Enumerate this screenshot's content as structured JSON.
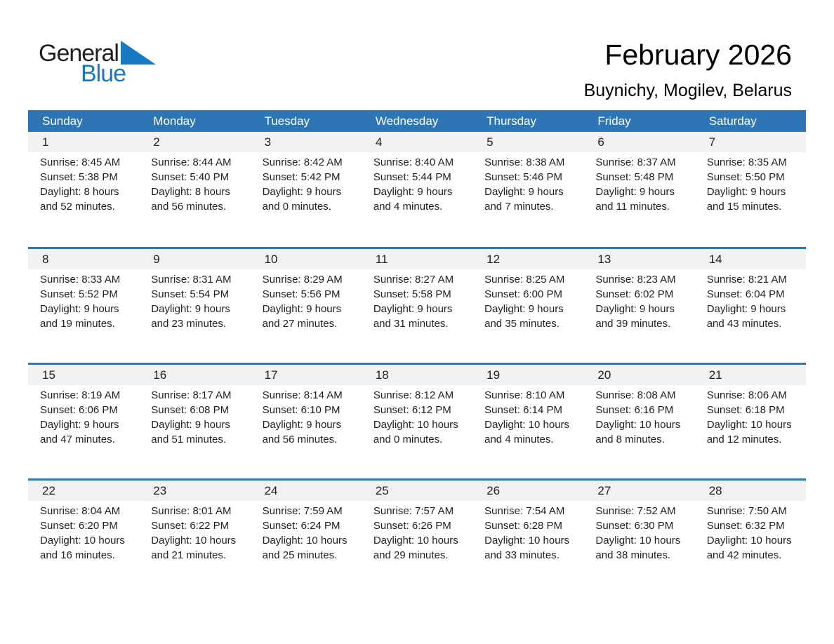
{
  "logo": {
    "general": "General",
    "blue": "Blue"
  },
  "header": {
    "month_title": "February 2026",
    "location": "Buynichy, Mogilev, Belarus"
  },
  "colors": {
    "header_blue": "#2E75B6",
    "week_line_blue": "#2E75B6",
    "day_band_gray": "#F1F1F1",
    "logo_blue": "#1779C1",
    "logo_dark": "#231F20",
    "text": "#1F1F1F"
  },
  "calendar": {
    "weekdays": [
      "Sunday",
      "Monday",
      "Tuesday",
      "Wednesday",
      "Thursday",
      "Friday",
      "Saturday"
    ],
    "weeks": [
      [
        {
          "day": "1",
          "sunrise": "Sunrise: 8:45 AM",
          "sunset": "Sunset: 5:38 PM",
          "daylight": "Daylight: 8 hours and 52 minutes."
        },
        {
          "day": "2",
          "sunrise": "Sunrise: 8:44 AM",
          "sunset": "Sunset: 5:40 PM",
          "daylight": "Daylight: 8 hours and 56 minutes."
        },
        {
          "day": "3",
          "sunrise": "Sunrise: 8:42 AM",
          "sunset": "Sunset: 5:42 PM",
          "daylight": "Daylight: 9 hours and 0 minutes."
        },
        {
          "day": "4",
          "sunrise": "Sunrise: 8:40 AM",
          "sunset": "Sunset: 5:44 PM",
          "daylight": "Daylight: 9 hours and 4 minutes."
        },
        {
          "day": "5",
          "sunrise": "Sunrise: 8:38 AM",
          "sunset": "Sunset: 5:46 PM",
          "daylight": "Daylight: 9 hours and 7 minutes."
        },
        {
          "day": "6",
          "sunrise": "Sunrise: 8:37 AM",
          "sunset": "Sunset: 5:48 PM",
          "daylight": "Daylight: 9 hours and 11 minutes."
        },
        {
          "day": "7",
          "sunrise": "Sunrise: 8:35 AM",
          "sunset": "Sunset: 5:50 PM",
          "daylight": "Daylight: 9 hours and 15 minutes."
        }
      ],
      [
        {
          "day": "8",
          "sunrise": "Sunrise: 8:33 AM",
          "sunset": "Sunset: 5:52 PM",
          "daylight": "Daylight: 9 hours and 19 minutes."
        },
        {
          "day": "9",
          "sunrise": "Sunrise: 8:31 AM",
          "sunset": "Sunset: 5:54 PM",
          "daylight": "Daylight: 9 hours and 23 minutes."
        },
        {
          "day": "10",
          "sunrise": "Sunrise: 8:29 AM",
          "sunset": "Sunset: 5:56 PM",
          "daylight": "Daylight: 9 hours and 27 minutes."
        },
        {
          "day": "11",
          "sunrise": "Sunrise: 8:27 AM",
          "sunset": "Sunset: 5:58 PM",
          "daylight": "Daylight: 9 hours and 31 minutes."
        },
        {
          "day": "12",
          "sunrise": "Sunrise: 8:25 AM",
          "sunset": "Sunset: 6:00 PM",
          "daylight": "Daylight: 9 hours and 35 minutes."
        },
        {
          "day": "13",
          "sunrise": "Sunrise: 8:23 AM",
          "sunset": "Sunset: 6:02 PM",
          "daylight": "Daylight: 9 hours and 39 minutes."
        },
        {
          "day": "14",
          "sunrise": "Sunrise: 8:21 AM",
          "sunset": "Sunset: 6:04 PM",
          "daylight": "Daylight: 9 hours and 43 minutes."
        }
      ],
      [
        {
          "day": "15",
          "sunrise": "Sunrise: 8:19 AM",
          "sunset": "Sunset: 6:06 PM",
          "daylight": "Daylight: 9 hours and 47 minutes."
        },
        {
          "day": "16",
          "sunrise": "Sunrise: 8:17 AM",
          "sunset": "Sunset: 6:08 PM",
          "daylight": "Daylight: 9 hours and 51 minutes."
        },
        {
          "day": "17",
          "sunrise": "Sunrise: 8:14 AM",
          "sunset": "Sunset: 6:10 PM",
          "daylight": "Daylight: 9 hours and 56 minutes."
        },
        {
          "day": "18",
          "sunrise": "Sunrise: 8:12 AM",
          "sunset": "Sunset: 6:12 PM",
          "daylight": "Daylight: 10 hours and 0 minutes."
        },
        {
          "day": "19",
          "sunrise": "Sunrise: 8:10 AM",
          "sunset": "Sunset: 6:14 PM",
          "daylight": "Daylight: 10 hours and 4 minutes."
        },
        {
          "day": "20",
          "sunrise": "Sunrise: 8:08 AM",
          "sunset": "Sunset: 6:16 PM",
          "daylight": "Daylight: 10 hours and 8 minutes."
        },
        {
          "day": "21",
          "sunrise": "Sunrise: 8:06 AM",
          "sunset": "Sunset: 6:18 PM",
          "daylight": "Daylight: 10 hours and 12 minutes."
        }
      ],
      [
        {
          "day": "22",
          "sunrise": "Sunrise: 8:04 AM",
          "sunset": "Sunset: 6:20 PM",
          "daylight": "Daylight: 10 hours and 16 minutes."
        },
        {
          "day": "23",
          "sunrise": "Sunrise: 8:01 AM",
          "sunset": "Sunset: 6:22 PM",
          "daylight": "Daylight: 10 hours and 21 minutes."
        },
        {
          "day": "24",
          "sunrise": "Sunrise: 7:59 AM",
          "sunset": "Sunset: 6:24 PM",
          "daylight": "Daylight: 10 hours and 25 minutes."
        },
        {
          "day": "25",
          "sunrise": "Sunrise: 7:57 AM",
          "sunset": "Sunset: 6:26 PM",
          "daylight": "Daylight: 10 hours and 29 minutes."
        },
        {
          "day": "26",
          "sunrise": "Sunrise: 7:54 AM",
          "sunset": "Sunset: 6:28 PM",
          "daylight": "Daylight: 10 hours and 33 minutes."
        },
        {
          "day": "27",
          "sunrise": "Sunrise: 7:52 AM",
          "sunset": "Sunset: 6:30 PM",
          "daylight": "Daylight: 10 hours and 38 minutes."
        },
        {
          "day": "28",
          "sunrise": "Sunrise: 7:50 AM",
          "sunset": "Sunset: 6:32 PM",
          "daylight": "Daylight: 10 hours and 42 minutes."
        }
      ]
    ]
  }
}
